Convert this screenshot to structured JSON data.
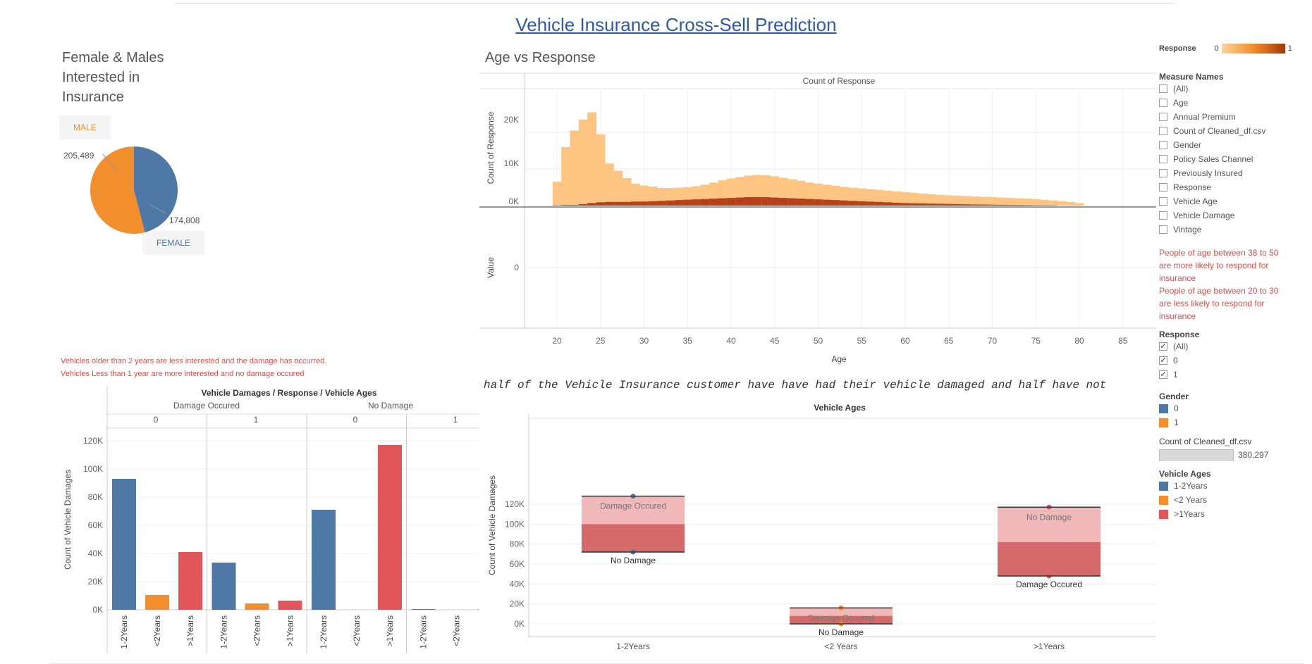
{
  "title": "Vehicle Insurance Cross-Sell Prediction",
  "pie": {
    "title_lines": [
      "Female & Males",
      "Interested in",
      "Insurance"
    ],
    "male_label": "MALE",
    "female_label": "FEMALE",
    "male_value": "205,489",
    "female_value": "174,808",
    "colors": {
      "male": "#f28e2b",
      "female": "#4e79a7"
    }
  },
  "age_chart": {
    "title": "Age vs Response",
    "header": "Count of Response",
    "ylabel_top": "Count of Response",
    "ylabel_bottom": "Value",
    "xlabel": "Age",
    "yticks_top": [
      "20K",
      "10K",
      "0K"
    ],
    "ytick_bottom": "0",
    "xticks": [
      "20",
      "25",
      "30",
      "35",
      "40",
      "45",
      "50",
      "55",
      "60",
      "65",
      "70",
      "75",
      "80",
      "85"
    ]
  },
  "notes_left": [
    "Vehicles older than 2 years are less interested and the damage has occurred.",
    "Vehicles Less than 1 year are more interested and no damage occured"
  ],
  "notes_right": [
    "People of age between 38 to 50",
    "are more likely  to respond for",
    "insurance",
    "People of age between 20 to 30",
    "are less likely to respond for",
    "insurance"
  ],
  "legend": {
    "response_title": "Response",
    "response_min": "0",
    "response_max": "1",
    "measure_title": "Measure Names",
    "measures": [
      "(All)",
      "Age",
      "Annual Premium",
      "Count of Cleaned_df.csv",
      "Gender",
      "Policy Sales Channel",
      "Previously Insured",
      "Response",
      "Vehicle Age",
      "Vehicle Damage",
      "Vintage"
    ],
    "response_filter_title": "Response",
    "response_filters": [
      "(All)",
      "0",
      "1"
    ],
    "gender_title": "Gender",
    "gender_items": [
      "0",
      "1"
    ],
    "count_title": "Count of Cleaned_df.csv",
    "count_value": "380,297",
    "vehicle_title": "Vehicle Ages",
    "vehicle_items": [
      "1-2Years",
      "<2 Years",
      ">1Years"
    ],
    "colors": {
      "blue": "#4e79a7",
      "orange": "#f28e2b",
      "red": "#e15759"
    }
  },
  "bar_chart": {
    "title": "Vehicle Damages / Response / Vehicle Ages",
    "groups": [
      "Damage Occured",
      "No Damage"
    ],
    "responses": [
      "0",
      "1",
      "0",
      "1"
    ],
    "ylabel": "Count of Vehicle Damages",
    "yticks": [
      "120K",
      "100K",
      "80K",
      "60K",
      "40K",
      "20K",
      "0K"
    ],
    "xcats": [
      "1-2Years",
      "<2Years",
      ">1Years"
    ]
  },
  "bottom_right": {
    "headline": "half of the Vehicle Insurance customer have have had their vehicle damaged and half have not",
    "title": "Vehicle Ages",
    "ylabel": "Count of Vehicle Damages",
    "yticks": [
      "120K",
      "100K",
      "80K",
      "60K",
      "40K",
      "20K",
      "0K"
    ],
    "xcats": [
      "1-2Years",
      "<2 Years",
      ">1Years"
    ],
    "labels": {
      "c1_top": "Damage Occured",
      "c1_bottom": "No Damage",
      "c2_top": "Damage Occured",
      "c2_bottom": "No Damage",
      "c3_top": "No Damage",
      "c3_bottom": "Damage Occured"
    }
  },
  "chart_data": [
    {
      "type": "pie",
      "title": "Female & Males Interested in Insurance",
      "categories": [
        "MALE",
        "FEMALE"
      ],
      "values": [
        205489,
        174808
      ]
    },
    {
      "type": "bar",
      "title": "Age vs Response",
      "xlabel": "Age",
      "ylabel": "Count of Response",
      "x": [
        20,
        21,
        22,
        23,
        24,
        25,
        26,
        27,
        28,
        29,
        30,
        31,
        32,
        33,
        34,
        35,
        36,
        37,
        38,
        39,
        40,
        41,
        42,
        43,
        44,
        45,
        46,
        47,
        48,
        49,
        50,
        51,
        52,
        53,
        54,
        55,
        56,
        57,
        58,
        59,
        60,
        61,
        62,
        63,
        64,
        65,
        66,
        67,
        68,
        69,
        70,
        71,
        72,
        73,
        74,
        75,
        76,
        77,
        78,
        79,
        80
      ],
      "series": [
        {
          "name": "0",
          "values": [
            6500,
            16000,
            20500,
            23500,
            25500,
            19500,
            11500,
            9500,
            7500,
            6000,
            5500,
            5200,
            4800,
            4800,
            4900,
            5000,
            5300,
            5700,
            6300,
            6900,
            7400,
            7800,
            8200,
            8400,
            8300,
            8000,
            7600,
            7200,
            6800,
            6300,
            6000,
            5700,
            5400,
            5100,
            4900,
            4700,
            4500,
            4300,
            4100,
            3900,
            3700,
            3500,
            3300,
            3100,
            2950,
            2800,
            2700,
            2600,
            2500,
            2400,
            2300,
            2200,
            2100,
            2000,
            1900,
            1800,
            1600,
            1400,
            1200,
            1000,
            700
          ]
        },
        {
          "name": "1",
          "values": [
            100,
            200,
            200,
            400,
            700,
            900,
            1000,
            1000,
            1000,
            1100,
            1100,
            1200,
            1300,
            1400,
            1500,
            1600,
            1700,
            1800,
            1900,
            2000,
            2100,
            2200,
            2300,
            2300,
            2300,
            2200,
            2100,
            2000,
            1900,
            1800,
            1700,
            1600,
            1500,
            1400,
            1300,
            1200,
            1100,
            1000,
            900,
            800,
            700,
            650,
            600,
            550,
            500,
            450,
            400,
            350,
            300,
            280,
            250,
            220,
            200,
            180,
            150,
            120,
            100,
            80,
            0,
            0,
            0
          ]
        }
      ],
      "ylim": [
        0,
        27000
      ]
    },
    {
      "type": "bar",
      "title": "Vehicle Damages / Response / Vehicle Ages",
      "ylabel": "Count of Vehicle Damages",
      "series": [
        {
          "name": "Damage Occured / 0",
          "categories": [
            "1-2Years",
            "<2Years",
            ">1Years"
          ],
          "values": [
            93000,
            10500,
            41000
          ]
        },
        {
          "name": "Damage Occured / 1",
          "categories": [
            "1-2Years",
            "<2Years",
            ">1Years"
          ],
          "values": [
            33500,
            4500,
            6500
          ]
        },
        {
          "name": "No Damage / 0",
          "categories": [
            "1-2Years",
            "<2Years",
            ">1Years"
          ],
          "values": [
            71000,
            0,
            117000
          ]
        },
        {
          "name": "No Damage / 1",
          "categories": [
            "1-2Years",
            "<2Years",
            ">1Years"
          ],
          "values": [
            500,
            0,
            300
          ]
        }
      ],
      "ylim": [
        0,
        125000
      ]
    },
    {
      "type": "bar",
      "title": "Vehicle Ages",
      "ylabel": "Count of Vehicle Damages",
      "categories": [
        "1-2Years",
        "<2 Years",
        ">1Years"
      ],
      "series": [
        {
          "name": "No Damage",
          "values": [
            72000,
            0,
            117000
          ]
        },
        {
          "name": "Damage Occured",
          "values": [
            128000,
            16000,
            48000
          ]
        }
      ],
      "ylim": [
        0,
        130000
      ]
    }
  ]
}
